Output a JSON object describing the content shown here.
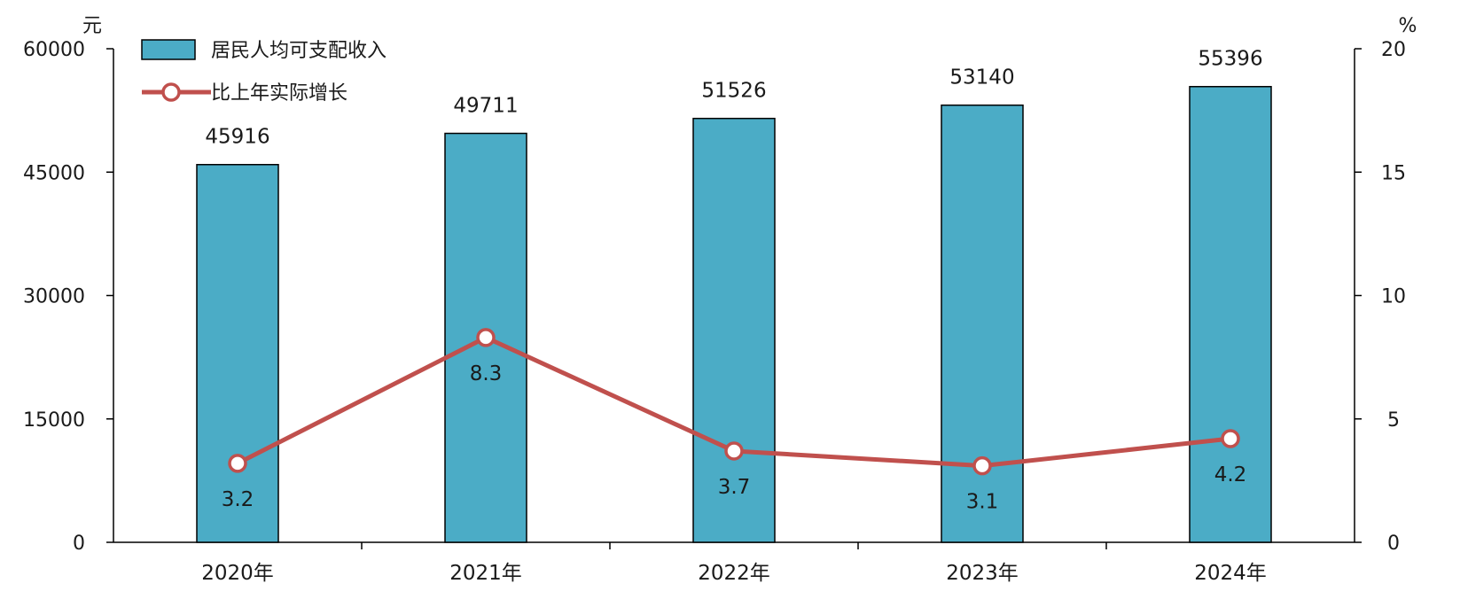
{
  "chart_data": {
    "type": "bar",
    "categories": [
      "2020年",
      "2021年",
      "2022年",
      "2023年",
      "2024年"
    ],
    "series": [
      {
        "name": "居民人均可支配收入",
        "type": "bar",
        "axis": "left",
        "values": [
          45916,
          49711,
          51526,
          53140,
          55396
        ],
        "color": "#4BACC6"
      },
      {
        "name": "比上年实际增长",
        "type": "line",
        "axis": "right",
        "values": [
          3.2,
          8.3,
          3.7,
          3.1,
          4.2
        ],
        "color": "#C0504D"
      }
    ],
    "y_left": {
      "unit": "元",
      "range": [
        0,
        60000
      ],
      "ticks": [
        "0",
        "15000",
        "30000",
        "45000",
        "60000"
      ]
    },
    "y_right": {
      "unit": "%",
      "range": [
        0,
        20
      ],
      "ticks": [
        "0",
        "5",
        "10",
        "15",
        "20"
      ]
    },
    "grid": false,
    "legend_position": "top-left"
  }
}
